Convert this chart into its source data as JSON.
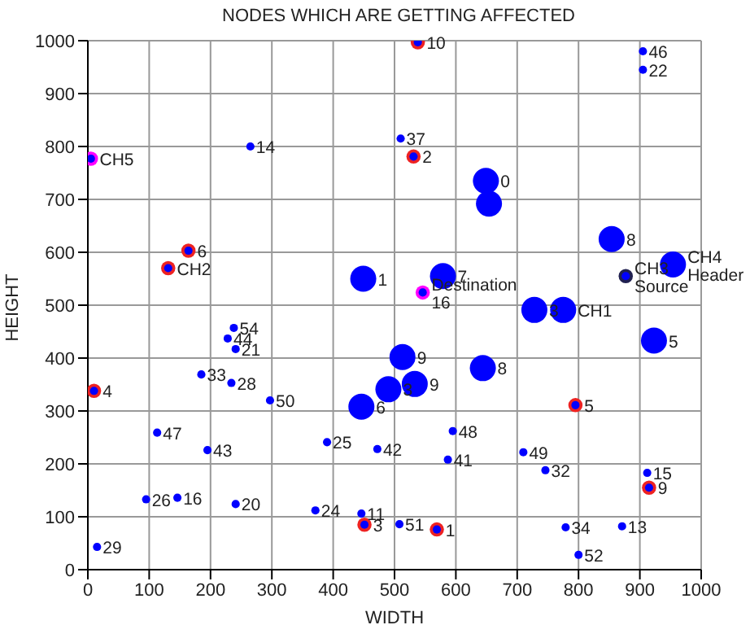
{
  "chart_data": {
    "type": "bubble",
    "title": "NODES WHICH ARE GETTING AFFECTED",
    "xlabel": "WIDTH",
    "ylabel": "HEIGHT",
    "xlim": [
      0,
      1000
    ],
    "xticks": [
      0,
      100,
      200,
      300,
      400,
      500,
      600,
      700,
      800,
      900,
      1000
    ],
    "ylim": [
      0,
      1000
    ],
    "yticks": [
      0,
      100,
      200,
      300,
      400,
      500,
      600,
      700,
      800,
      900,
      1000
    ],
    "grid": true,
    "legend": false,
    "series": [
      {
        "color": "#ee2222",
        "x": [
          538,
          531,
          164,
          131,
          10,
          451,
          569,
          795,
          915
        ],
        "values": [
          997,
          781,
          603,
          570,
          338,
          85,
          76,
          311,
          155
        ],
        "sizes": [
          0.3,
          0.3,
          0.3,
          0.3,
          0.3,
          0.3,
          0.3,
          0.3,
          0.3
        ]
      },
      {
        "color": "#ff00ff",
        "x": [
          5,
          546
        ],
        "values": [
          777,
          524
        ],
        "sizes": [
          0.3,
          0.3
        ]
      },
      {
        "color": "#202050",
        "x": [
          877
        ],
        "values": [
          555
        ],
        "sizes": [
          0.3
        ]
      },
      {
        "color": "#0000ff",
        "x": [
          449,
          649,
          654,
          854,
          954,
          579,
          728,
          775,
          923,
          513,
          644,
          533,
          490,
          446
        ],
        "values": [
          550,
          735,
          692,
          625,
          577,
          555,
          491,
          491,
          433,
          402,
          381,
          351,
          341,
          308
        ],
        "sizes": [
          1,
          1,
          1,
          1,
          1,
          1,
          1,
          1,
          1,
          1,
          1,
          1,
          1,
          1
        ]
      },
      {
        "color": "#0000ff",
        "x": [
          265,
          510,
          905,
          905,
          238,
          228,
          241,
          185,
          234,
          297,
          113,
          195,
          390,
          95,
          146,
          241,
          371,
          446,
          15,
          472,
          595,
          587,
          710,
          746,
          912,
          508,
          779,
          871,
          800,
          538,
          531,
          164,
          131,
          10,
          451,
          569,
          795,
          915,
          5,
          546,
          877
        ],
        "values": [
          800,
          815,
          980,
          945,
          457,
          437,
          417,
          369,
          353,
          320,
          259,
          226,
          241,
          133,
          136,
          124,
          112,
          106,
          43,
          228,
          262,
          208,
          222,
          188,
          183,
          86,
          80,
          82,
          28,
          997,
          781,
          603,
          570,
          338,
          85,
          76,
          311,
          155,
          777,
          524,
          555
        ],
        "sizes": [
          0.1,
          0.1,
          0.1,
          0.1,
          0.1,
          0.1,
          0.1,
          0.1,
          0.1,
          0.1,
          0.1,
          0.1,
          0.1,
          0.1,
          0.1,
          0.1,
          0.1,
          0.1,
          0.1,
          0.1,
          0.1,
          0.1,
          0.1,
          0.1,
          0.1,
          0.1,
          0.1,
          0.1,
          0.1,
          0.1,
          0.1,
          0.1,
          0.1,
          0.1,
          0.1,
          0.1,
          0.1,
          0.1,
          0.1,
          0.1,
          0.1
        ]
      }
    ],
    "annotations": [
      {
        "text": "14",
        "x": 265,
        "y": 800
      },
      {
        "text": "37",
        "x": 510,
        "y": 815
      },
      {
        "text": "46",
        "x": 905,
        "y": 980
      },
      {
        "text": "22",
        "x": 905,
        "y": 945
      },
      {
        "text": "54",
        "x": 238,
        "y": 457
      },
      {
        "text": "44",
        "x": 228,
        "y": 437
      },
      {
        "text": "21",
        "x": 241,
        "y": 417
      },
      {
        "text": "33",
        "x": 185,
        "y": 369
      },
      {
        "text": "28",
        "x": 234,
        "y": 353
      },
      {
        "text": "50",
        "x": 297,
        "y": 320
      },
      {
        "text": "47",
        "x": 113,
        "y": 259
      },
      {
        "text": "43",
        "x": 195,
        "y": 226
      },
      {
        "text": "25",
        "x": 390,
        "y": 241
      },
      {
        "text": "26",
        "x": 95,
        "y": 133
      },
      {
        "text": "16",
        "x": 146,
        "y": 136
      },
      {
        "text": "20",
        "x": 241,
        "y": 124
      },
      {
        "text": "24",
        "x": 371,
        "y": 112
      },
      {
        "text": "11",
        "x": 446,
        "y": 106
      },
      {
        "text": "29",
        "x": 15,
        "y": 43
      },
      {
        "text": "42",
        "x": 472,
        "y": 228
      },
      {
        "text": "48",
        "x": 595,
        "y": 262
      },
      {
        "text": "41",
        "x": 587,
        "y": 208
      },
      {
        "text": "49",
        "x": 710,
        "y": 222
      },
      {
        "text": "32",
        "x": 746,
        "y": 188
      },
      {
        "text": "15",
        "x": 912,
        "y": 183
      },
      {
        "text": "51",
        "x": 508,
        "y": 86
      },
      {
        "text": "34",
        "x": 779,
        "y": 80
      },
      {
        "text": "13",
        "x": 871,
        "y": 82
      },
      {
        "text": "52",
        "x": 800,
        "y": 28
      },
      {
        "text": "1",
        "x": 449,
        "y": 550
      },
      {
        "text": "0",
        "x": 649,
        "y": 735
      },
      {
        "text": "8",
        "x": 854,
        "y": 625
      },
      {
        "text": "CH4",
        "x": 954,
        "y": 577
      },
      {
        "text": "Header",
        "x": 954,
        "y": 577
      },
      {
        "text": "7",
        "x": 579,
        "y": 555
      },
      {
        "text": "3",
        "x": 728,
        "y": 491
      },
      {
        "text": "CH1",
        "x": 775,
        "y": 491
      },
      {
        "text": "CH3",
        "x": 877,
        "y": 555
      },
      {
        "text": "Source",
        "x": 877,
        "y": 555
      },
      {
        "text": "Destination",
        "x": 546,
        "y": 524
      },
      {
        "text": "16",
        "x": 546,
        "y": 524
      },
      {
        "text": "5",
        "x": 923,
        "y": 433
      },
      {
        "text": "9",
        "x": 513,
        "y": 402
      },
      {
        "text": "8",
        "x": 644,
        "y": 381
      },
      {
        "text": "9",
        "x": 533,
        "y": 351
      },
      {
        "text": "3",
        "x": 490,
        "y": 341
      },
      {
        "text": "6",
        "x": 446,
        "y": 308
      },
      {
        "text": "10",
        "x": 538,
        "y": 997
      },
      {
        "text": "2",
        "x": 531,
        "y": 781
      },
      {
        "text": "6",
        "x": 164,
        "y": 603
      },
      {
        "text": "CH2",
        "x": 131,
        "y": 570
      },
      {
        "text": "CH5",
        "x": 5,
        "y": 777
      },
      {
        "text": "4",
        "x": 10,
        "y": 338
      },
      {
        "text": "3",
        "x": 451,
        "y": 85
      },
      {
        "text": "1",
        "x": 569,
        "y": 76
      },
      {
        "text": "5",
        "x": 795,
        "y": 311
      },
      {
        "text": "9",
        "x": 915,
        "y": 155
      }
    ]
  }
}
